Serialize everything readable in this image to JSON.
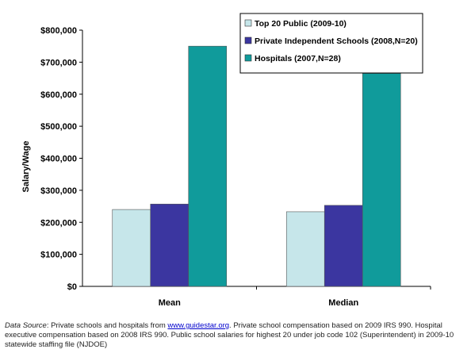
{
  "chart_data": {
    "type": "bar",
    "categories": [
      "Mean",
      "Median"
    ],
    "series": [
      {
        "name": "Top 20 Public (2009-10)",
        "color": "#c6e6ea",
        "values": [
          240000,
          233000
        ]
      },
      {
        "name": "Private Independent Schools (2008,N=20)",
        "color": "#3b36a0",
        "values": [
          257000,
          253000
        ]
      },
      {
        "name": "Hospitals (2007,N=28)",
        "color": "#109b9b",
        "values": [
          750000,
          665000
        ]
      }
    ],
    "ylabel": "Salary/Wage",
    "xlabel": "",
    "ylim": [
      0,
      800000
    ],
    "yticks": [
      0,
      100000,
      200000,
      300000,
      400000,
      500000,
      600000,
      700000,
      800000
    ],
    "ytick_labels": [
      "$0",
      "$100,000",
      "$200,000",
      "$300,000",
      "$400,000",
      "$500,000",
      "$600,000",
      "$700,000",
      "$800,000"
    ],
    "grid": false,
    "legend_position": "top-right"
  },
  "source": {
    "label": "Data Source",
    "text1": ": Private schools and hospitals from ",
    "link": "www.guidestar.org",
    "text2": ". Private school compensation based on 2009 IRS 990. Hospital executive compensation based on 2008 IRS 990. Public school salaries for highest 20 under job code 102 (Superintendent) in 2009-10 statewide staffing file (NJDOE)"
  }
}
